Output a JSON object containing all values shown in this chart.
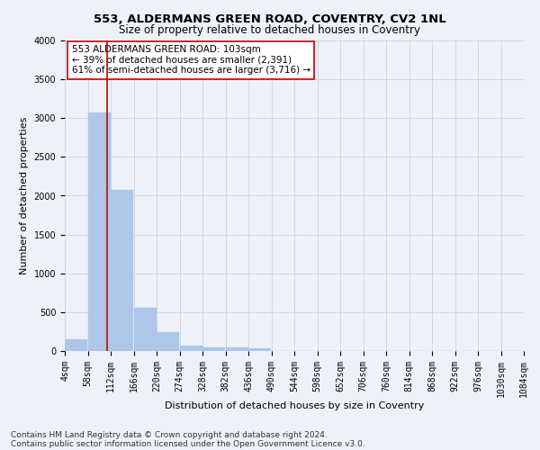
{
  "title1": "553, ALDERMANS GREEN ROAD, COVENTRY, CV2 1NL",
  "title2": "Size of property relative to detached houses in Coventry",
  "xlabel": "Distribution of detached houses by size in Coventry",
  "ylabel": "Number of detached properties",
  "footer1": "Contains HM Land Registry data © Crown copyright and database right 2024.",
  "footer2": "Contains public sector information licensed under the Open Government Licence v3.0.",
  "annotation_line1": "553 ALDERMANS GREEN ROAD: 103sqm",
  "annotation_line2": "← 39% of detached houses are smaller (2,391)",
  "annotation_line3": "61% of semi-detached houses are larger (3,716) →",
  "property_size": 103,
  "bin_edges": [
    4,
    58,
    112,
    166,
    220,
    274,
    328,
    382,
    436,
    490,
    544,
    598,
    652,
    706,
    760,
    814,
    868,
    922,
    976,
    1030,
    1084
  ],
  "bar_values": [
    150,
    3070,
    2070,
    560,
    240,
    75,
    45,
    45,
    35,
    0,
    0,
    0,
    0,
    0,
    0,
    0,
    0,
    0,
    0,
    0
  ],
  "bar_color": "#aec6e8",
  "bar_edge_color": "#aec6e8",
  "vline_color": "#cc0000",
  "vline_x": 103,
  "ylim": [
    0,
    4000
  ],
  "yticks": [
    0,
    500,
    1000,
    1500,
    2000,
    2500,
    3000,
    3500,
    4000
  ],
  "grid_color": "#d0d8e8",
  "background_color": "#eef2f8",
  "annotation_box_color": "#ffffff",
  "annotation_box_edge": "#cc0000",
  "title1_fontsize": 9.5,
  "title2_fontsize": 8.5,
  "xlabel_fontsize": 8,
  "ylabel_fontsize": 8,
  "tick_fontsize": 7,
  "annotation_fontsize": 7.5,
  "footer_fontsize": 6.5
}
